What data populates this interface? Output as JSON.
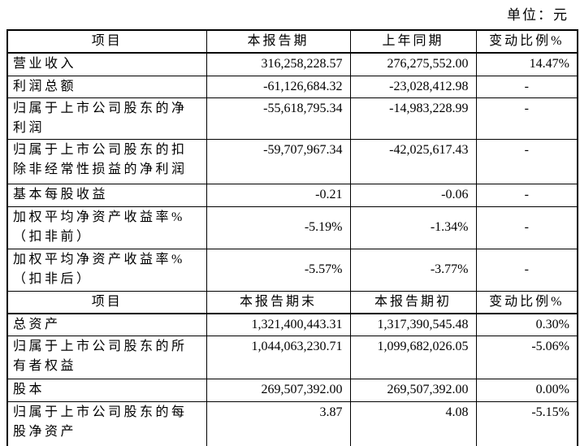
{
  "page": {
    "unit_label": "单位：元"
  },
  "table1": {
    "headers": {
      "item": "项目",
      "col1": "本报告期",
      "col2": "上年同期",
      "col3": "变动比例%"
    },
    "rows": [
      {
        "item": "营业收入",
        "current": "316,258,228.57",
        "prior": "276,275,552.00",
        "change": "14.47%"
      },
      {
        "item": "利润总额",
        "current": "-61,126,684.32",
        "prior": "-23,028,412.98",
        "change": "-"
      },
      {
        "item": "归属于上市公司股东的净\n利润",
        "current": "-55,618,795.34",
        "prior": "-14,983,228.99",
        "change": "-"
      },
      {
        "item": "归属于上市公司股东的扣\n除非经常性损益的净利润",
        "current": "-59,707,967.34",
        "prior": "-42,025,617.43",
        "change": "-"
      },
      {
        "item": "基本每股收益",
        "current": "-0.21",
        "prior": "-0.06",
        "change": "-"
      },
      {
        "item": "加权平均净资产收益率%\n（扣非前）",
        "current": "-5.19%",
        "prior": "-1.34%",
        "change": "-"
      },
      {
        "item": "加权平均净资产收益率%\n（扣非后）",
        "current": "-5.57%",
        "prior": "-3.77%",
        "change": "-"
      }
    ]
  },
  "table2": {
    "headers": {
      "item": "项目",
      "col1": "本报告期末",
      "col2": "本报告期初",
      "col3": "变动比例%"
    },
    "rows": [
      {
        "item": "总资产",
        "end": "1,321,400,443.31",
        "begin": "1,317,390,545.48",
        "change": "0.30%"
      },
      {
        "item": "归属于上市公司股东的所\n有者权益",
        "end": "1,044,063,230.71",
        "begin": "1,099,682,026.05",
        "change": "-5.06%"
      },
      {
        "item": "股本",
        "end": "269,507,392.00",
        "begin": "269,507,392.00",
        "change": "0.00%"
      },
      {
        "item": "归属于上市公司股东的每\n股净资产",
        "end": "3.87",
        "begin": "4.08",
        "change": "-5.15%"
      }
    ]
  }
}
